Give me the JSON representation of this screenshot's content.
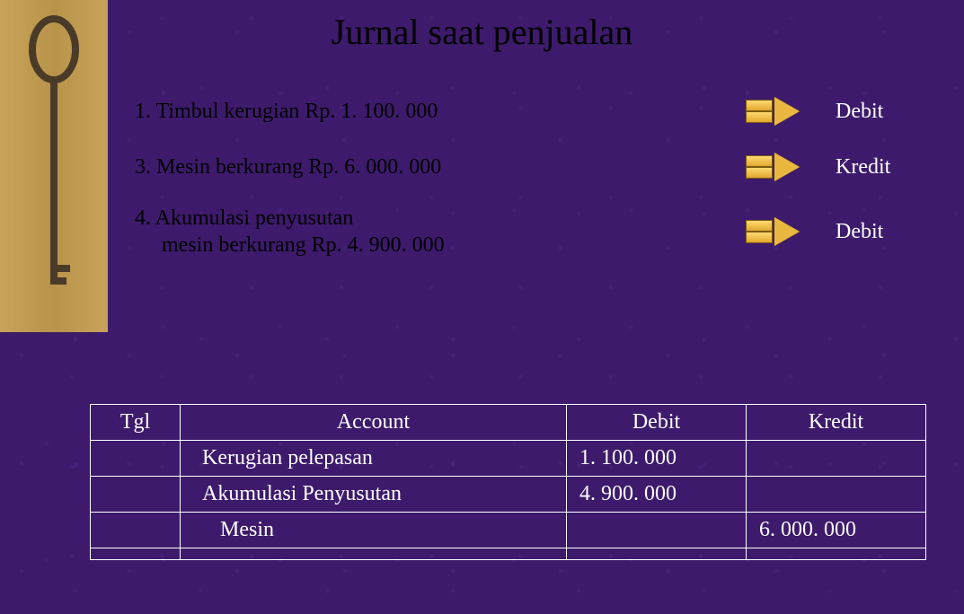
{
  "title": "Jurnal saat penjualan",
  "rows": [
    {
      "num": "1.",
      "text": "Timbul kerugian   Rp. 1. 100. 000",
      "label": "Debit"
    },
    {
      "num": "3.",
      "text": "Mesin berkurang Rp. 6. 000. 000",
      "label": "Kredit"
    },
    {
      "num": "4.",
      "text": "Akumulasi penyusutan\nmesin berkurang Rp. 4. 900. 000",
      "label": "Debit"
    }
  ],
  "table": {
    "headers": {
      "tgl": "Tgl",
      "account": "Account",
      "debit": "Debit",
      "kredit": "Kredit"
    },
    "entries": [
      {
        "tgl": "",
        "account": "Kerugian pelepasan",
        "debit": "1. 100. 000",
        "kredit": "",
        "indent": 1
      },
      {
        "tgl": "",
        "account": "Akumulasi Penyusutan",
        "debit": "4. 900. 000",
        "kredit": "",
        "indent": 1
      },
      {
        "tgl": "",
        "account": "Mesin",
        "debit": "",
        "kredit": "6. 000. 000",
        "indent": 2
      },
      {
        "tgl": "",
        "account": "",
        "debit": "",
        "kredit": "",
        "indent": 0
      }
    ]
  },
  "layout": {
    "row_tops": [
      108,
      170,
      228
    ]
  },
  "colors": {
    "background": "#3d1a6b",
    "title_text": "#000000",
    "row_text": "#000000",
    "label_text": "#ffffff",
    "table_text": "#ffffff",
    "arrow_fill": "#e8b840",
    "key_bg": "#c9a35a"
  }
}
